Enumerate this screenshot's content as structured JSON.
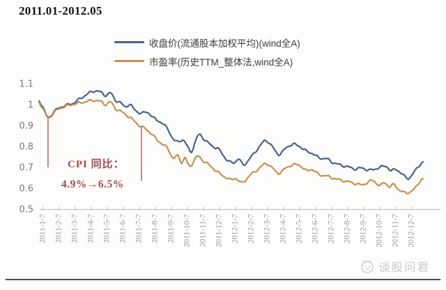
{
  "title": "2011.01-2012.05",
  "legend": {
    "items": [
      {
        "label": "收盘价(流通股本加权平均)(wind全A)",
        "color": "#47618f"
      },
      {
        "label": "市盈率(历史TTM_整体法,wind全A)",
        "color": "#ca8f4c"
      }
    ]
  },
  "annotation": {
    "line1": "CPI 同比：",
    "line2": "4.9%→6.5%",
    "color": "#a8474e"
  },
  "watermark": {
    "text": "谈股问君"
  },
  "chart_data": {
    "type": "line",
    "title": "2011.01-2012.05",
    "xlabel": "",
    "ylabel": "",
    "grid": false,
    "legend_position": "top-center",
    "y_axis": {
      "min": 0.5,
      "max": 1.1,
      "ticks": [
        1.1,
        1,
        0.9,
        0.8,
        0.7,
        0.6,
        0.5
      ],
      "label_color": "#7a7a7a"
    },
    "x_axis": {
      "categories": [
        "2011-1-7",
        "2011-2-7",
        "2011-3-7",
        "2011-4-7",
        "2011-5-7",
        "2011-6-7",
        "2011-7-7",
        "2011-8-7",
        "2011-9-7",
        "2011-10-7",
        "2011-11-7",
        "2011-12-7",
        "2012-1-7",
        "2012-2-7",
        "2012-3-7",
        "2012-4-7",
        "2012-5-7",
        "2012-6-7",
        "2012-7-7",
        "2012-8-7",
        "2012-9-7",
        "2012-10-7",
        "2012-11-7",
        "2012-12-7"
      ],
      "label_color": "#9a9a9a",
      "axis_color": "#c4c4c4"
    },
    "series": [
      {
        "name": "收盘价(流通股本加权平均)(wind全A)",
        "color": "#47618f",
        "points": [
          [
            -0.25,
            1.02
          ],
          [
            0.0,
            0.985
          ],
          [
            0.3,
            0.938
          ],
          [
            0.7,
            0.968
          ],
          [
            1.1,
            0.988
          ],
          [
            1.6,
            1.0
          ],
          [
            1.9,
            1.008
          ],
          [
            2.3,
            1.028
          ],
          [
            2.7,
            1.048
          ],
          [
            3.0,
            1.06
          ],
          [
            3.3,
            1.066
          ],
          [
            3.6,
            1.058
          ],
          [
            3.9,
            1.044
          ],
          [
            4.2,
            1.055
          ],
          [
            4.5,
            1.022
          ],
          [
            4.8,
            1.01
          ],
          [
            5.1,
            0.99
          ],
          [
            5.4,
            1.0
          ],
          [
            5.7,
            0.976
          ],
          [
            6.1,
            0.958
          ],
          [
            6.5,
            0.964
          ],
          [
            6.9,
            0.935
          ],
          [
            7.4,
            0.912
          ],
          [
            7.8,
            0.88
          ],
          [
            8.1,
            0.835
          ],
          [
            8.4,
            0.822
          ],
          [
            8.7,
            0.832
          ],
          [
            9.0,
            0.8
          ],
          [
            9.25,
            0.776
          ],
          [
            9.7,
            0.856
          ],
          [
            10.1,
            0.828
          ],
          [
            10.6,
            0.8
          ],
          [
            11.0,
            0.782
          ],
          [
            11.5,
            0.732
          ],
          [
            11.9,
            0.723
          ],
          [
            12.2,
            0.74
          ],
          [
            12.5,
            0.712
          ],
          [
            13.0,
            0.752
          ],
          [
            13.5,
            0.8
          ],
          [
            13.9,
            0.828
          ],
          [
            14.3,
            0.798
          ],
          [
            14.7,
            0.762
          ],
          [
            15.2,
            0.796
          ],
          [
            15.6,
            0.81
          ],
          [
            16.0,
            0.8
          ],
          [
            16.4,
            0.778
          ],
          [
            16.8,
            0.766
          ],
          [
            17.2,
            0.746
          ],
          [
            17.7,
            0.74
          ],
          [
            18.1,
            0.722
          ],
          [
            18.6,
            0.71
          ],
          [
            19.1,
            0.7
          ],
          [
            19.5,
            0.692
          ],
          [
            19.9,
            0.697
          ],
          [
            20.3,
            0.686
          ],
          [
            20.7,
            0.692
          ],
          [
            21.1,
            0.702
          ],
          [
            21.4,
            0.706
          ],
          [
            21.7,
            0.682
          ],
          [
            22.0,
            0.692
          ],
          [
            22.4,
            0.666
          ],
          [
            22.8,
            0.648
          ],
          [
            23.1,
            0.672
          ],
          [
            23.4,
            0.705
          ],
          [
            23.7,
            0.726
          ]
        ]
      },
      {
        "name": "市盈率(历史TTM_整体法,wind全A)",
        "color": "#ca8f4c",
        "points": [
          [
            -0.25,
            1.012
          ],
          [
            0.0,
            0.978
          ],
          [
            0.3,
            0.936
          ],
          [
            0.7,
            0.964
          ],
          [
            1.1,
            0.984
          ],
          [
            1.6,
            0.996
          ],
          [
            2.0,
            1.004
          ],
          [
            2.4,
            1.01
          ],
          [
            2.8,
            1.016
          ],
          [
            3.2,
            1.02
          ],
          [
            3.6,
            1.014
          ],
          [
            3.9,
            1.0
          ],
          [
            4.2,
            1.012
          ],
          [
            4.5,
            0.982
          ],
          [
            4.9,
            0.964
          ],
          [
            5.3,
            0.944
          ],
          [
            5.7,
            0.92
          ],
          [
            6.1,
            0.894
          ],
          [
            6.4,
            0.884
          ],
          [
            6.8,
            0.856
          ],
          [
            7.1,
            0.832
          ],
          [
            7.5,
            0.806
          ],
          [
            7.8,
            0.788
          ],
          [
            8.1,
            0.742
          ],
          [
            8.4,
            0.756
          ],
          [
            8.65,
            0.722
          ],
          [
            8.85,
            0.746
          ],
          [
            9.15,
            0.704
          ],
          [
            9.6,
            0.752
          ],
          [
            10.0,
            0.73
          ],
          [
            10.4,
            0.708
          ],
          [
            10.9,
            0.676
          ],
          [
            11.3,
            0.656
          ],
          [
            11.7,
            0.64
          ],
          [
            12.0,
            0.648
          ],
          [
            12.4,
            0.626
          ],
          [
            12.9,
            0.662
          ],
          [
            13.4,
            0.69
          ],
          [
            13.9,
            0.718
          ],
          [
            14.3,
            0.696
          ],
          [
            14.7,
            0.672
          ],
          [
            15.2,
            0.7
          ],
          [
            15.6,
            0.712
          ],
          [
            16.0,
            0.71
          ],
          [
            16.4,
            0.684
          ],
          [
            16.75,
            0.69
          ],
          [
            17.2,
            0.666
          ],
          [
            17.7,
            0.658
          ],
          [
            18.1,
            0.648
          ],
          [
            18.6,
            0.638
          ],
          [
            19.1,
            0.63
          ],
          [
            19.5,
            0.622
          ],
          [
            19.9,
            0.616
          ],
          [
            20.3,
            0.63
          ],
          [
            20.6,
            0.636
          ],
          [
            21.0,
            0.612
          ],
          [
            21.3,
            0.628
          ],
          [
            21.6,
            0.606
          ],
          [
            21.9,
            0.618
          ],
          [
            22.2,
            0.592
          ],
          [
            22.6,
            0.578
          ],
          [
            23.0,
            0.586
          ],
          [
            23.3,
            0.61
          ],
          [
            23.5,
            0.635
          ],
          [
            23.7,
            0.646
          ]
        ]
      }
    ],
    "annotations": {
      "cpi_text_line1": "CPI 同比：",
      "cpi_text_line2": "4.9%→6.5%",
      "vlines": [
        {
          "month": 0.3,
          "v_top": 0.938,
          "v_bottom": 0.7
        },
        {
          "month": 6.13,
          "v_top": 0.895,
          "v_bottom": 0.635
        }
      ],
      "vline_color": "#a8474e"
    }
  }
}
